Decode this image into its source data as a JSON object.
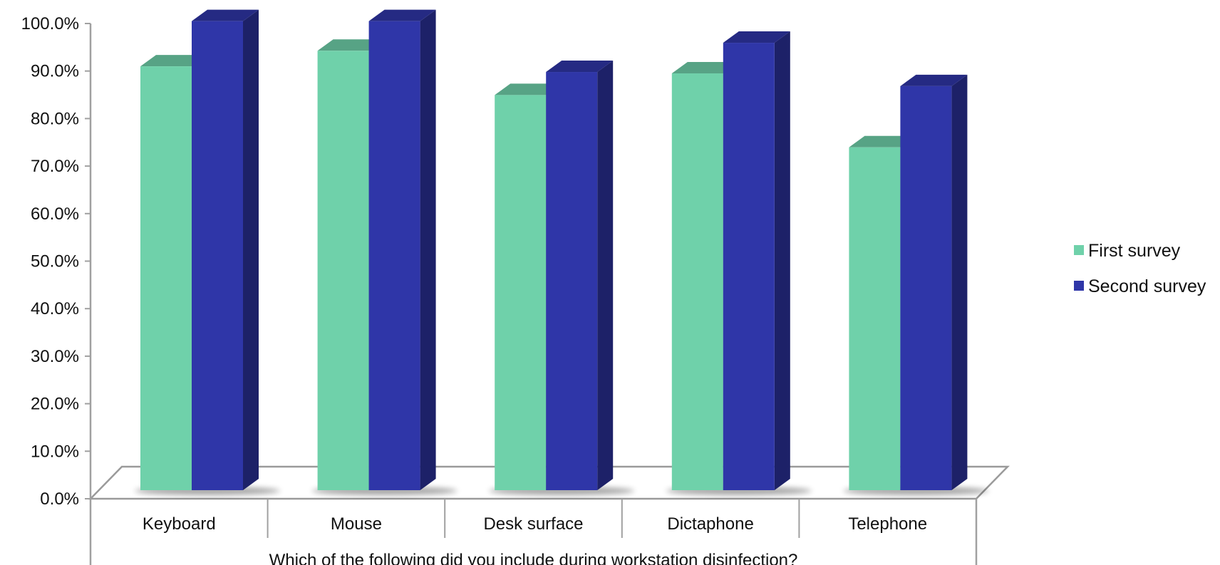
{
  "chart_data": {
    "type": "bar",
    "title": "",
    "xlabel": "Which of the following did you include during workstation disinfection?",
    "ylabel": "",
    "categories": [
      "Keyboard",
      "Mouse",
      "Desk surface",
      "Dictaphone",
      "Telephone"
    ],
    "series": [
      {
        "name": "First survey",
        "values": [
          90.0,
          93.3,
          83.9,
          88.5,
          72.8
        ],
        "color": "#6fd1aa"
      },
      {
        "name": "Second survey",
        "values": [
          99.6,
          99.6,
          88.8,
          95.0,
          85.8
        ],
        "color": "#2f36a8"
      }
    ],
    "ylim": [
      0,
      100
    ],
    "yticks": [
      0,
      10,
      20,
      30,
      40,
      50,
      60,
      70,
      80,
      90,
      100
    ],
    "ytick_labels": [
      "0.0%",
      "10.0%",
      "20.0%",
      "30.0%",
      "40.0%",
      "50.0%",
      "60.0%",
      "70.0%",
      "80.0%",
      "90.0%",
      "100.0%"
    ],
    "legend_position": "right",
    "grid": false,
    "style": "3d-column"
  }
}
